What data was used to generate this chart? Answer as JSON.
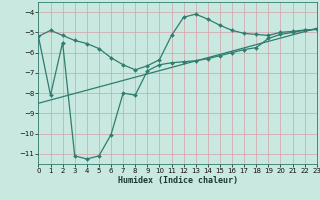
{
  "xlabel": "Humidex (Indice chaleur)",
  "bg_color": "#c8e8e0",
  "grid_color": "#d0e8e0",
  "line_color": "#2e7d6e",
  "xlim": [
    0,
    23
  ],
  "ylim": [
    -11.5,
    -3.5
  ],
  "yticks": [
    -11,
    -10,
    -9,
    -8,
    -7,
    -6,
    -5,
    -4
  ],
  "xticks": [
    0,
    1,
    2,
    3,
    4,
    5,
    6,
    7,
    8,
    9,
    10,
    11,
    12,
    13,
    14,
    15,
    16,
    17,
    18,
    19,
    20,
    21,
    22,
    23
  ],
  "curve1_x": [
    0,
    1,
    2,
    3,
    4,
    5,
    6,
    7,
    8,
    9,
    10,
    11,
    12,
    13,
    14,
    15,
    16,
    17,
    18,
    19,
    20,
    21,
    22,
    23
  ],
  "curve1_y": [
    -5.2,
    -4.9,
    -5.15,
    -5.4,
    -5.55,
    -5.8,
    -6.25,
    -6.6,
    -6.85,
    -6.65,
    -6.35,
    -5.15,
    -4.25,
    -4.1,
    -4.35,
    -4.65,
    -4.9,
    -5.05,
    -5.1,
    -5.15,
    -5.0,
    -4.95,
    -4.88,
    -4.85
  ],
  "curve2_x": [
    0,
    1,
    2,
    3,
    4,
    5,
    6,
    7,
    8,
    9,
    10,
    11,
    12,
    13,
    14,
    15,
    16,
    17,
    18,
    19,
    20,
    21,
    22,
    23
  ],
  "curve2_y": [
    -5.2,
    -8.1,
    -5.5,
    -11.1,
    -11.25,
    -11.1,
    -10.05,
    -8.0,
    -8.1,
    -6.9,
    -6.6,
    -6.5,
    -6.45,
    -6.4,
    -6.3,
    -6.15,
    -6.0,
    -5.85,
    -5.75,
    -5.3,
    -5.1,
    -5.0,
    -4.9,
    -4.85
  ],
  "curve3_x": [
    0,
    23
  ],
  "curve3_y": [
    -8.5,
    -4.8
  ]
}
